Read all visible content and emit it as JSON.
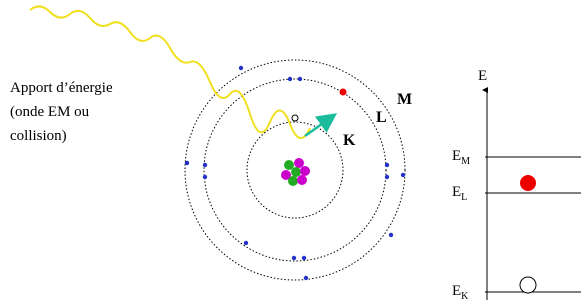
{
  "annotation": {
    "lines": [
      "Apport d’énergie",
      "(onde EM ou",
      "collision)"
    ]
  },
  "shells": [
    "K",
    "L",
    "M"
  ],
  "energy_axis": {
    "label": "E",
    "levels": [
      {
        "base": "E",
        "sub": "M"
      },
      {
        "base": "E",
        "sub": "L"
      },
      {
        "base": "E",
        "sub": "K"
      }
    ]
  }
}
